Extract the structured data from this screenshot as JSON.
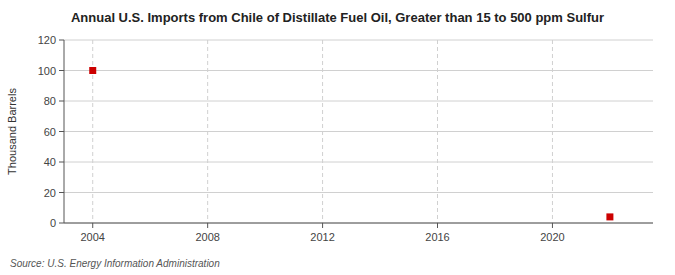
{
  "chart_data": {
    "type": "scatter",
    "title": "Annual U.S. Imports from Chile of Distillate Fuel Oil, Greater than 15 to 500 ppm Sulfur",
    "ylabel": "Thousand Barrels",
    "annotations": [
      "Source: U.S. Energy Information Administration"
    ],
    "x": [
      2004,
      2022
    ],
    "values": [
      100,
      4
    ],
    "color": "#cc0000",
    "marker": "square",
    "xlim": [
      2003.0,
      2023.5
    ],
    "ylim": [
      0,
      120
    ],
    "xticks": [
      2004,
      2008,
      2012,
      2016,
      2020
    ],
    "yticks": [
      0,
      20,
      40,
      60,
      80,
      100,
      120
    ],
    "grid": true
  }
}
